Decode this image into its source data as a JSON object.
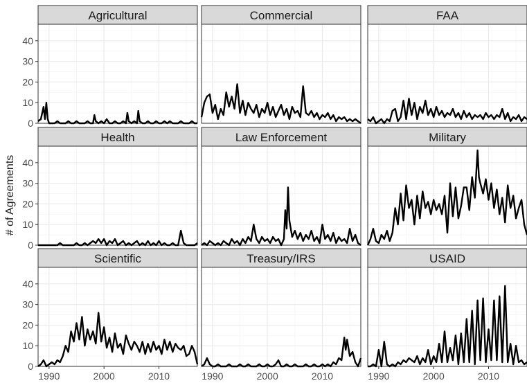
{
  "chart_data": {
    "type": "line",
    "ylabel": "# of Agreements",
    "xlabel": "",
    "xlim": [
      1988,
      2017
    ],
    "ylim": [
      0,
      48
    ],
    "yticks": [
      0,
      10,
      20,
      30,
      40
    ],
    "xticks": [
      1990,
      2000,
      2010
    ],
    "grid": true,
    "line_color": "#000000",
    "panel_bg": "#ffffff",
    "strip_bg": "#d9d9d9",
    "grid_color": "#ebebeb",
    "panels": [
      {
        "title": "Agricultural",
        "x": [
          1988,
          1988.5,
          1989,
          1989.25,
          1989.5,
          1989.75,
          1990,
          1990.5,
          1991,
          1991.5,
          1992,
          1992.5,
          1993,
          1993.5,
          1994,
          1994.5,
          1995,
          1995.5,
          1996,
          1996.5,
          1997,
          1997.5,
          1998,
          1998.25,
          1998.5,
          1999,
          1999.5,
          2000,
          2000.5,
          2001,
          2001.5,
          2002,
          2002.5,
          2003,
          2003.5,
          2004,
          2004.25,
          2004.5,
          2005,
          2005.5,
          2006,
          2006.25,
          2006.5,
          2007,
          2007.5,
          2008,
          2008.5,
          2009,
          2009.5,
          2010,
          2010.5,
          2011,
          2011.5,
          2012,
          2012.5,
          2013,
          2013.5,
          2014,
          2014.5,
          2015,
          2015.5,
          2016,
          2016.5,
          2017
        ],
        "y": [
          1,
          2,
          8,
          2,
          10,
          2,
          0,
          0,
          0,
          1,
          0,
          0,
          0,
          1,
          0,
          0,
          1,
          0,
          0,
          0,
          1,
          0,
          0,
          4,
          1,
          0,
          1,
          0,
          2,
          0,
          0,
          1,
          0,
          0,
          1,
          0,
          5,
          1,
          0,
          1,
          0,
          6,
          1,
          0,
          0,
          1,
          0,
          0,
          1,
          0,
          0,
          1,
          0,
          1,
          0,
          0,
          0,
          1,
          0,
          0,
          0,
          1,
          0,
          0
        ]
      },
      {
        "title": "Commercial",
        "x": [
          1988,
          1988.5,
          1989,
          1989.5,
          1990,
          1990.5,
          1991,
          1991.5,
          1992,
          1992.5,
          1993,
          1993.5,
          1994,
          1994.5,
          1995,
          1995.5,
          1996,
          1996.5,
          1997,
          1997.5,
          1998,
          1998.5,
          1999,
          1999.5,
          2000,
          2000.5,
          2001,
          2001.5,
          2002,
          2002.5,
          2003,
          2003.5,
          2004,
          2004.5,
          2005,
          2005.5,
          2006,
          2006.5,
          2007,
          2007.5,
          2008,
          2008.5,
          2009,
          2009.5,
          2010,
          2010.5,
          2011,
          2011.5,
          2012,
          2012.5,
          2013,
          2013.5,
          2014,
          2014.5,
          2015,
          2015.5,
          2016,
          2016.5,
          2017
        ],
        "y": [
          3,
          10,
          13,
          14,
          5,
          9,
          2,
          7,
          4,
          15,
          8,
          13,
          7,
          19,
          5,
          11,
          4,
          10,
          7,
          5,
          9,
          3,
          7,
          5,
          10,
          4,
          8,
          3,
          6,
          9,
          4,
          7,
          2,
          8,
          5,
          6,
          3,
          18,
          5,
          4,
          6,
          3,
          5,
          2,
          4,
          3,
          5,
          2,
          4,
          1,
          3,
          2,
          3,
          1,
          2,
          1,
          2,
          1,
          0
        ]
      },
      {
        "title": "FAA",
        "x": [
          1988,
          1988.5,
          1989,
          1989.5,
          1990,
          1990.5,
          1991,
          1991.5,
          1992,
          1992.5,
          1993,
          1993.5,
          1994,
          1994.5,
          1995,
          1995.5,
          1996,
          1996.5,
          1997,
          1997.5,
          1998,
          1998.5,
          1999,
          1999.5,
          2000,
          2000.5,
          2001,
          2001.5,
          2002,
          2002.5,
          2003,
          2003.5,
          2004,
          2004.5,
          2005,
          2005.5,
          2006,
          2006.5,
          2007,
          2007.5,
          2008,
          2008.5,
          2009,
          2009.5,
          2010,
          2010.5,
          2011,
          2011.5,
          2012,
          2012.5,
          2013,
          2013.5,
          2014,
          2014.5,
          2015,
          2015.5,
          2016,
          2016.5,
          2017
        ],
        "y": [
          2,
          1,
          3,
          0,
          1,
          2,
          0,
          2,
          1,
          6,
          7,
          1,
          3,
          11,
          2,
          12,
          4,
          10,
          2,
          8,
          5,
          11,
          4,
          7,
          3,
          8,
          4,
          6,
          3,
          5,
          4,
          7,
          3,
          5,
          2,
          6,
          3,
          5,
          2,
          4,
          3,
          4,
          2,
          5,
          3,
          4,
          2,
          4,
          3,
          7,
          2,
          5,
          1,
          3,
          2,
          4,
          1,
          3,
          2
        ]
      },
      {
        "title": "Health",
        "x": [
          1988,
          1988.5,
          1989,
          1989.5,
          1990,
          1990.5,
          1991,
          1991.5,
          1992,
          1992.5,
          1993,
          1993.5,
          1994,
          1994.5,
          1995,
          1995.5,
          1996,
          1996.5,
          1997,
          1997.5,
          1998,
          1998.5,
          1999,
          1999.5,
          2000,
          2000.5,
          2001,
          2001.5,
          2002,
          2002.5,
          2003,
          2003.5,
          2004,
          2004.5,
          2005,
          2005.5,
          2006,
          2006.5,
          2007,
          2007.5,
          2008,
          2008.5,
          2009,
          2009.5,
          2010,
          2010.5,
          2011,
          2011.5,
          2012,
          2012.5,
          2013,
          2013.5,
          2014,
          2014.5,
          2015,
          2015.5,
          2016,
          2016.5,
          2017
        ],
        "y": [
          0,
          0,
          0,
          0,
          0,
          0,
          0,
          0,
          1,
          0,
          0,
          0,
          0,
          0,
          1,
          0,
          0,
          1,
          0,
          1,
          2,
          1,
          3,
          1,
          3,
          0,
          2,
          1,
          3,
          0,
          1,
          2,
          0,
          1,
          0,
          1,
          2,
          0,
          1,
          0,
          2,
          0,
          1,
          0,
          2,
          0,
          1,
          0,
          0,
          1,
          0,
          0,
          7,
          1,
          0,
          0,
          0,
          0,
          1
        ]
      },
      {
        "title": "Law Enforcement",
        "x": [
          1988,
          1988.5,
          1989,
          1989.5,
          1990,
          1990.5,
          1991,
          1991.5,
          1992,
          1992.5,
          1993,
          1993.5,
          1994,
          1994.5,
          1995,
          1995.5,
          1996,
          1996.5,
          1997,
          1997.5,
          1998,
          1998.5,
          1999,
          1999.5,
          2000,
          2000.5,
          2001,
          2001.5,
          2002,
          2002.5,
          2003,
          2003.25,
          2003.5,
          2003.75,
          2004,
          2004.5,
          2005,
          2005.5,
          2006,
          2006.5,
          2007,
          2007.5,
          2008,
          2008.5,
          2009,
          2009.5,
          2010,
          2010.5,
          2011,
          2011.5,
          2012,
          2012.5,
          2013,
          2013.5,
          2014,
          2014.5,
          2015,
          2015.5,
          2016,
          2016.5,
          2017
        ],
        "y": [
          0,
          1,
          0,
          2,
          1,
          0,
          1,
          0,
          2,
          1,
          0,
          3,
          1,
          2,
          0,
          3,
          1,
          4,
          2,
          10,
          3,
          1,
          4,
          2,
          3,
          1,
          4,
          2,
          3,
          0,
          3,
          17,
          8,
          28,
          12,
          4,
          7,
          3,
          6,
          2,
          5,
          3,
          7,
          2,
          4,
          1,
          10,
          3,
          5,
          2,
          6,
          1,
          4,
          2,
          3,
          1,
          8,
          2,
          5,
          1,
          0
        ]
      },
      {
        "title": "Military",
        "x": [
          1988,
          1988.5,
          1989,
          1989.5,
          1990,
          1990.5,
          1991,
          1991.5,
          1992,
          1992.5,
          1993,
          1993.5,
          1994,
          1994.5,
          1995,
          1995.5,
          1996,
          1996.5,
          1997,
          1997.5,
          1998,
          1998.5,
          1999,
          1999.5,
          2000,
          2000.5,
          2001,
          2001.5,
          2002,
          2002.5,
          2003,
          2003.5,
          2004,
          2004.5,
          2005,
          2005.5,
          2006,
          2006.5,
          2007,
          2007.5,
          2008,
          2008.25,
          2008.5,
          2009,
          2009.5,
          2010,
          2010.5,
          2011,
          2011.5,
          2012,
          2012.5,
          2013,
          2013.5,
          2014,
          2014.5,
          2015,
          2015.5,
          2016,
          2016.5,
          2017
        ],
        "y": [
          0,
          3,
          8,
          2,
          1,
          5,
          3,
          7,
          2,
          6,
          18,
          10,
          25,
          12,
          29,
          18,
          22,
          10,
          24,
          13,
          26,
          18,
          21,
          15,
          22,
          17,
          20,
          15,
          24,
          6,
          30,
          14,
          28,
          13,
          19,
          28,
          28,
          17,
          33,
          23,
          46,
          33,
          30,
          25,
          32,
          22,
          30,
          18,
          27,
          15,
          23,
          11,
          29,
          18,
          24,
          13,
          18,
          22,
          10,
          5
        ]
      },
      {
        "title": "Scientific",
        "x": [
          1988,
          1988.5,
          1989,
          1989.5,
          1990,
          1990.5,
          1991,
          1991.5,
          1992,
          1992.5,
          1993,
          1993.5,
          1994,
          1994.5,
          1995,
          1995.5,
          1996,
          1996.5,
          1997,
          1997.5,
          1998,
          1998.5,
          1999,
          1999.5,
          2000,
          2000.5,
          2001,
          2001.5,
          2002,
          2002.5,
          2003,
          2003.5,
          2004,
          2004.5,
          2005,
          2005.5,
          2006,
          2006.5,
          2007,
          2007.5,
          2008,
          2008.5,
          2009,
          2009.5,
          2010,
          2010.5,
          2011,
          2011.5,
          2012,
          2012.5,
          2013,
          2013.5,
          2014,
          2014.5,
          2015,
          2015.5,
          2016,
          2016.5,
          2017
        ],
        "y": [
          0,
          1,
          3,
          0,
          1,
          2,
          1,
          3,
          2,
          5,
          10,
          7,
          17,
          12,
          21,
          13,
          24,
          10,
          18,
          13,
          17,
          11,
          26,
          12,
          19,
          9,
          14,
          7,
          16,
          9,
          11,
          6,
          15,
          11,
          8,
          12,
          10,
          7,
          12,
          6,
          11,
          7,
          12,
          8,
          10,
          6,
          13,
          8,
          12,
          7,
          11,
          9,
          8,
          10,
          5,
          6,
          10,
          7,
          1
        ]
      },
      {
        "title": "Treasury/IRS",
        "x": [
          1988,
          1988.5,
          1989,
          1989.5,
          1990,
          1990.5,
          1991,
          1991.5,
          1992,
          1992.5,
          1993,
          1993.5,
          1994,
          1994.5,
          1995,
          1995.5,
          1996,
          1996.5,
          1997,
          1997.5,
          1998,
          1998.5,
          1999,
          1999.5,
          2000,
          2000.5,
          2001,
          2001.5,
          2002,
          2002.5,
          2003,
          2003.5,
          2004,
          2004.5,
          2005,
          2005.5,
          2006,
          2006.5,
          2007,
          2007.5,
          2008,
          2008.5,
          2009,
          2009.5,
          2010,
          2010.5,
          2011,
          2011.5,
          2012,
          2012.5,
          2013,
          2013.5,
          2014,
          2014.25,
          2014.5,
          2015,
          2015.5,
          2016,
          2016.5,
          2017
        ],
        "y": [
          0,
          1,
          4,
          1,
          0,
          0,
          1,
          0,
          0,
          0,
          1,
          0,
          0,
          0,
          1,
          0,
          0,
          1,
          0,
          0,
          0,
          1,
          0,
          0,
          1,
          0,
          0,
          1,
          3,
          0,
          0,
          1,
          0,
          0,
          1,
          0,
          0,
          0,
          1,
          0,
          0,
          1,
          0,
          0,
          1,
          0,
          1,
          0,
          2,
          1,
          4,
          3,
          14,
          8,
          13,
          5,
          7,
          2,
          0,
          4
        ]
      },
      {
        "title": "USAID",
        "x": [
          1988,
          1988.5,
          1989,
          1989.5,
          1990,
          1990.5,
          1991,
          1991.5,
          1992,
          1992.5,
          1993,
          1993.5,
          1994,
          1994.5,
          1995,
          1995.5,
          1996,
          1996.5,
          1997,
          1997.5,
          1998,
          1998.5,
          1999,
          1999.5,
          2000,
          2000.5,
          2001,
          2001.5,
          2002,
          2002.5,
          2003,
          2003.5,
          2004,
          2004.5,
          2005,
          2005.5,
          2006,
          2006.5,
          2007,
          2007.5,
          2008,
          2008.5,
          2009,
          2009.5,
          2010,
          2010.5,
          2011,
          2011.5,
          2012,
          2012.5,
          2013,
          2013.5,
          2014,
          2014.5,
          2015,
          2015.5,
          2016,
          2016.5,
          2017
        ],
        "y": [
          0,
          0,
          1,
          0,
          8,
          0,
          12,
          1,
          0,
          1,
          0,
          2,
          1,
          3,
          2,
          4,
          3,
          2,
          5,
          1,
          4,
          2,
          8,
          1,
          5,
          2,
          11,
          2,
          17,
          2,
          9,
          3,
          15,
          1,
          16,
          2,
          23,
          2,
          27,
          1,
          32,
          3,
          33,
          2,
          18,
          3,
          32,
          3,
          34,
          2,
          39,
          2,
          11,
          1,
          10,
          2,
          3,
          1,
          2
        ]
      }
    ]
  }
}
